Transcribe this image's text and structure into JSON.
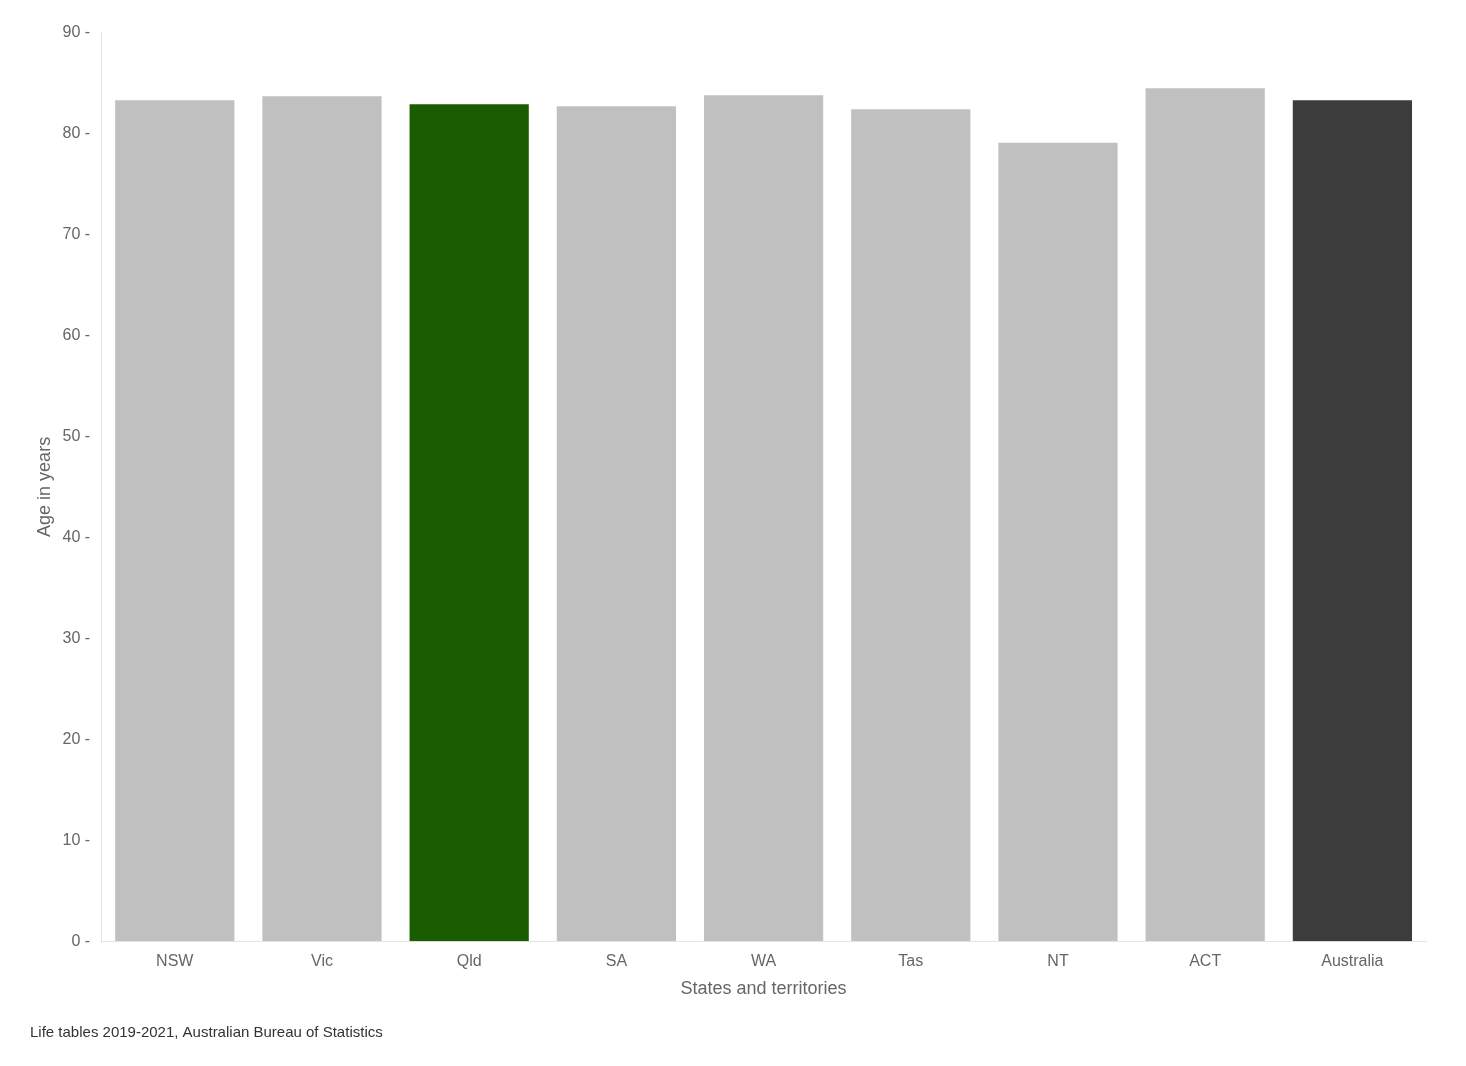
{
  "chart_data": {
    "type": "bar",
    "categories": [
      "NSW",
      "Vic",
      "Qld",
      "SA",
      "WA",
      "Tas",
      "NT",
      "ACT",
      "Australia"
    ],
    "values": [
      83.3,
      83.7,
      82.9,
      82.7,
      83.8,
      82.4,
      79.1,
      84.5,
      83.3
    ],
    "colors": [
      "#c0c0c0",
      "#c0c0c0",
      "#1a5c00",
      "#c0c0c0",
      "#c0c0c0",
      "#c0c0c0",
      "#c0c0c0",
      "#c0c0c0",
      "#3c3c3c"
    ],
    "xlabel": "States and territories",
    "ylabel": "Age in years",
    "caption": "Life tables 2019-2021, Australian Bureau of Statistics",
    "ylim": [
      0,
      90
    ],
    "yticks": [
      {
        "value": 0,
        "label": "0 -"
      },
      {
        "value": 10,
        "label": "10 -"
      },
      {
        "value": 20,
        "label": "20 -"
      },
      {
        "value": 30,
        "label": "30 -"
      },
      {
        "value": 40,
        "label": "40 -"
      },
      {
        "value": 50,
        "label": "50 -"
      },
      {
        "value": 60,
        "label": "60 -"
      },
      {
        "value": 70,
        "label": "70 -"
      },
      {
        "value": 80,
        "label": "80 -"
      },
      {
        "value": 90,
        "label": "90 -"
      }
    ],
    "grid": false
  }
}
